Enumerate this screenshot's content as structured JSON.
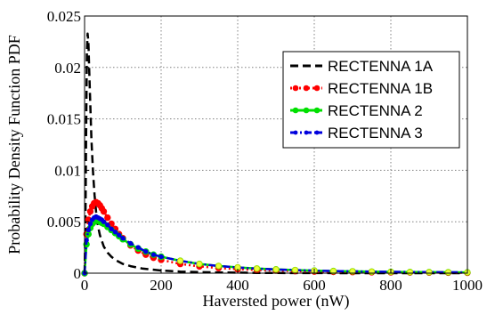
{
  "chart_data": {
    "type": "line",
    "xlabel": "Haversted power (nW)",
    "ylabel": "Probability Density Function PDF",
    "xlim": [
      0,
      1000
    ],
    "ylim": [
      0,
      0.025
    ],
    "xticks": [
      0,
      200,
      400,
      600,
      800,
      1000
    ],
    "xtick_labels": [
      "0",
      "200",
      "400",
      "600",
      "800",
      "1000"
    ],
    "yticks": [
      0,
      0.005,
      0.01,
      0.015,
      0.02,
      0.025
    ],
    "ytick_labels": [
      "0",
      "0.005",
      "0.01",
      "0.015",
      "0.02",
      "0.025"
    ],
    "grid": true,
    "legend_position": "top-right",
    "series": [
      {
        "name": "RECTENNA 1A",
        "color": "#000000",
        "style": "dashed",
        "marker": "none",
        "x": [
          0,
          2,
          4,
          6,
          8,
          10,
          12,
          15,
          18,
          22,
          26,
          30,
          35,
          40,
          50,
          60,
          70,
          80,
          100,
          120,
          150,
          200,
          250,
          300,
          350,
          400,
          450,
          500,
          600,
          700,
          800,
          900,
          1000
        ],
        "y": [
          0.0,
          0.004,
          0.013,
          0.0215,
          0.0233,
          0.0225,
          0.0198,
          0.0162,
          0.013,
          0.0098,
          0.0076,
          0.006,
          0.0046,
          0.0037,
          0.0026,
          0.002,
          0.0016,
          0.0013,
          0.0009,
          0.00068,
          0.00046,
          0.00026,
          0.00016,
          0.0001,
          7e-05,
          5e-05,
          3e-05,
          2e-05,
          1e-05,
          0.0,
          0.0,
          0.0,
          0.0
        ]
      },
      {
        "name": "RECTENNA 1B",
        "color": "#ff0000",
        "style": "dotted",
        "marker": "circle",
        "x": [
          0,
          5,
          10,
          15,
          20,
          25,
          30,
          35,
          40,
          45,
          50,
          60,
          70,
          80,
          90,
          100,
          120,
          140,
          160,
          180,
          200,
          250,
          300,
          350,
          400,
          450,
          500,
          550,
          600,
          650,
          700,
          750,
          800,
          850,
          900,
          950,
          1000
        ],
        "y": [
          0.0,
          0.0038,
          0.0052,
          0.006,
          0.0065,
          0.0068,
          0.0069,
          0.0068,
          0.0066,
          0.0063,
          0.006,
          0.0054,
          0.0048,
          0.0043,
          0.0038,
          0.0034,
          0.0027,
          0.0022,
          0.0018,
          0.0015,
          0.0013,
          0.0009,
          0.00066,
          0.0005,
          0.00039,
          0.00031,
          0.00025,
          0.0002,
          0.00016,
          0.00013,
          0.00011,
          9e-05,
          8e-05,
          7e-05,
          6e-05,
          5e-05,
          4e-05
        ]
      },
      {
        "name": "RECTENNA 2",
        "color": "#00e000",
        "style": "solid",
        "marker": "circle",
        "x": [
          0,
          5,
          10,
          15,
          20,
          25,
          30,
          35,
          40,
          45,
          50,
          60,
          70,
          80,
          90,
          100,
          120,
          140,
          160,
          180,
          200,
          250,
          300,
          350,
          400,
          450,
          500,
          550,
          600,
          650,
          700,
          750,
          800,
          850,
          900,
          950,
          1000
        ],
        "y": [
          0.0,
          0.0028,
          0.0038,
          0.0044,
          0.0048,
          0.005,
          0.0051,
          0.0051,
          0.005,
          0.0049,
          0.0048,
          0.0045,
          0.0042,
          0.0039,
          0.0036,
          0.0033,
          0.0028,
          0.0024,
          0.0021,
          0.0018,
          0.0016,
          0.0012,
          0.0009,
          0.0007,
          0.00056,
          0.00045,
          0.00037,
          0.0003,
          0.00025,
          0.00021,
          0.00018,
          0.00015,
          0.00013,
          0.00011,
          0.0001,
          9e-05,
          8e-05
        ]
      },
      {
        "name": "RECTENNA 3",
        "color": "#0000dd",
        "style": "dashdot",
        "marker": "point",
        "x": [
          0,
          5,
          10,
          15,
          20,
          25,
          30,
          35,
          40,
          45,
          50,
          60,
          70,
          80,
          90,
          100,
          120,
          140,
          160,
          180,
          200,
          250,
          300,
          350,
          400,
          450,
          500,
          550,
          600,
          650,
          700,
          750,
          800,
          850,
          900,
          950,
          1000
        ],
        "y": [
          0.0,
          0.0032,
          0.0042,
          0.0048,
          0.0052,
          0.0054,
          0.0055,
          0.0054,
          0.0053,
          0.0052,
          0.005,
          0.0047,
          0.0043,
          0.004,
          0.0037,
          0.0034,
          0.0029,
          0.0025,
          0.0021,
          0.0018,
          0.0016,
          0.0012,
          0.0009,
          0.0007,
          0.00055,
          0.00044,
          0.00036,
          0.0003,
          0.00025,
          0.00021,
          0.00018,
          0.00015,
          0.00013,
          0.00011,
          0.0001,
          9e-05,
          8e-05
        ]
      }
    ]
  }
}
